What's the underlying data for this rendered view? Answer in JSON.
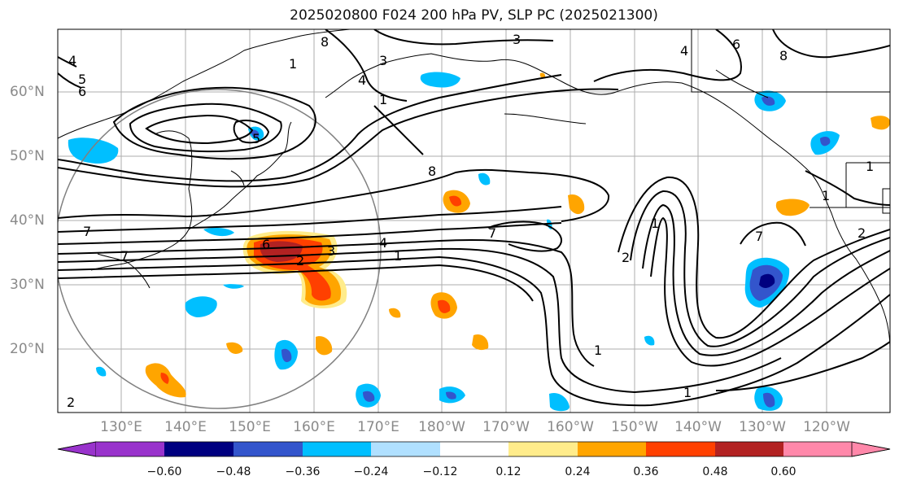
{
  "title": "2025020800 F024 200 hPa PV, SLP PC (2025021300)",
  "lat_labels": [
    "60°N",
    "50°N",
    "40°N",
    "30°N",
    "20°N"
  ],
  "lon_labels": [
    "130°E",
    "140°E",
    "150°E",
    "160°E",
    "170°E",
    "180°W",
    "170°W",
    "160°W",
    "150°W",
    "140°W",
    "130°W",
    "120°W"
  ],
  "colorbar": {
    "ticks": [
      "−0.60",
      "−0.48",
      "−0.36",
      "−0.24",
      "−0.12",
      "0.12",
      "0.24",
      "0.36",
      "0.48",
      "0.60"
    ],
    "colors": [
      "#9933cc",
      "#000080",
      "#3355cc",
      "#00bfff",
      "#b0e0ff",
      "#ffffff",
      "#ffec8b",
      "#ffa500",
      "#ff4000",
      "#b22222",
      "#ff88aa"
    ]
  },
  "contour_labels": [
    "8",
    "3",
    "4",
    "5",
    "6",
    "4",
    "3",
    "1",
    "4",
    "1",
    "6",
    "8",
    "5",
    "7",
    "6",
    "2",
    "4",
    "1",
    "7",
    "2",
    "1",
    "7",
    "2",
    "1",
    "1",
    "1",
    "2",
    "3",
    "8",
    "7",
    "1"
  ]
}
